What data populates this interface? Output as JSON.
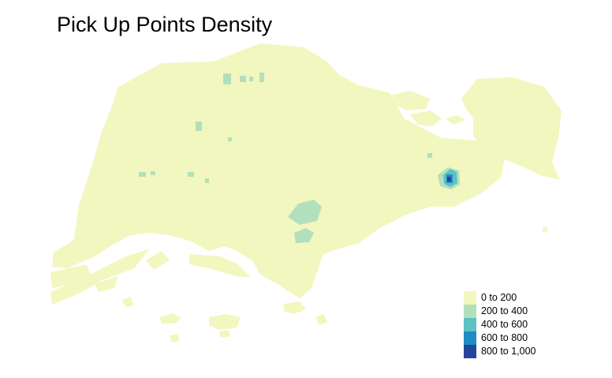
{
  "title": "Pick Up Points Density",
  "legend": {
    "items": [
      {
        "label": "0 to 200",
        "color": "#F1F7BF"
      },
      {
        "label": "200 to 400",
        "color": "#B3E0BC"
      },
      {
        "label": "400 to 600",
        "color": "#5CC2C3"
      },
      {
        "label": "600 to 800",
        "color": "#1F8DC4"
      },
      {
        "label": "800 to 1,000",
        "color": "#23469A"
      }
    ]
  },
  "land_color": "#F1F7BF"
}
